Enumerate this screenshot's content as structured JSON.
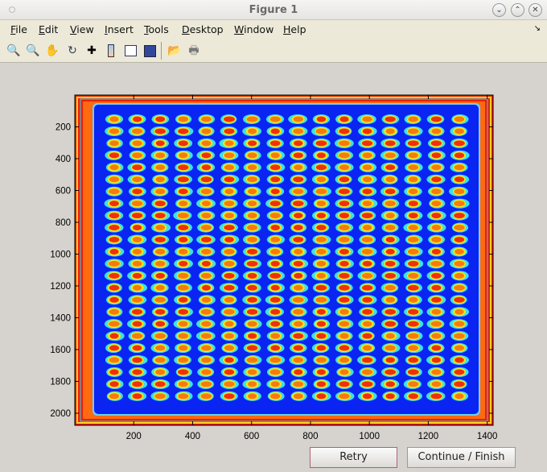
{
  "window": {
    "title": "Figure 1",
    "buttons": [
      "minimize",
      "maximize",
      "close"
    ]
  },
  "menubar": {
    "items": [
      "File",
      "Edit",
      "View",
      "Insert",
      "Tools",
      "Desktop",
      "Window",
      "Help"
    ],
    "dock_icon": "dock-arrow-icon"
  },
  "toolbar": {
    "icons": [
      "zoom-in-icon",
      "zoom-out-icon",
      "pan-hand-icon",
      "rotate-3d-icon",
      "data-cursor-icon",
      "colorbar-icon",
      "legend-icon",
      "save-icon",
      "open-folder-icon",
      "print-icon"
    ]
  },
  "chart_data": {
    "type": "heatmap",
    "colormap": "jet",
    "xlim": [
      0,
      1420
    ],
    "ylim": [
      0,
      2076
    ],
    "y_reversed": true,
    "xticks": [
      200,
      400,
      600,
      800,
      1000,
      1200,
      1400
    ],
    "yticks": [
      200,
      400,
      600,
      800,
      1000,
      1200,
      1400,
      1600,
      1800,
      2000
    ],
    "spot_grid": {
      "rows": 24,
      "cols": 16
    },
    "grid": false
  },
  "buttons": {
    "retry": "Retry",
    "continue": "Continue / Finish"
  }
}
